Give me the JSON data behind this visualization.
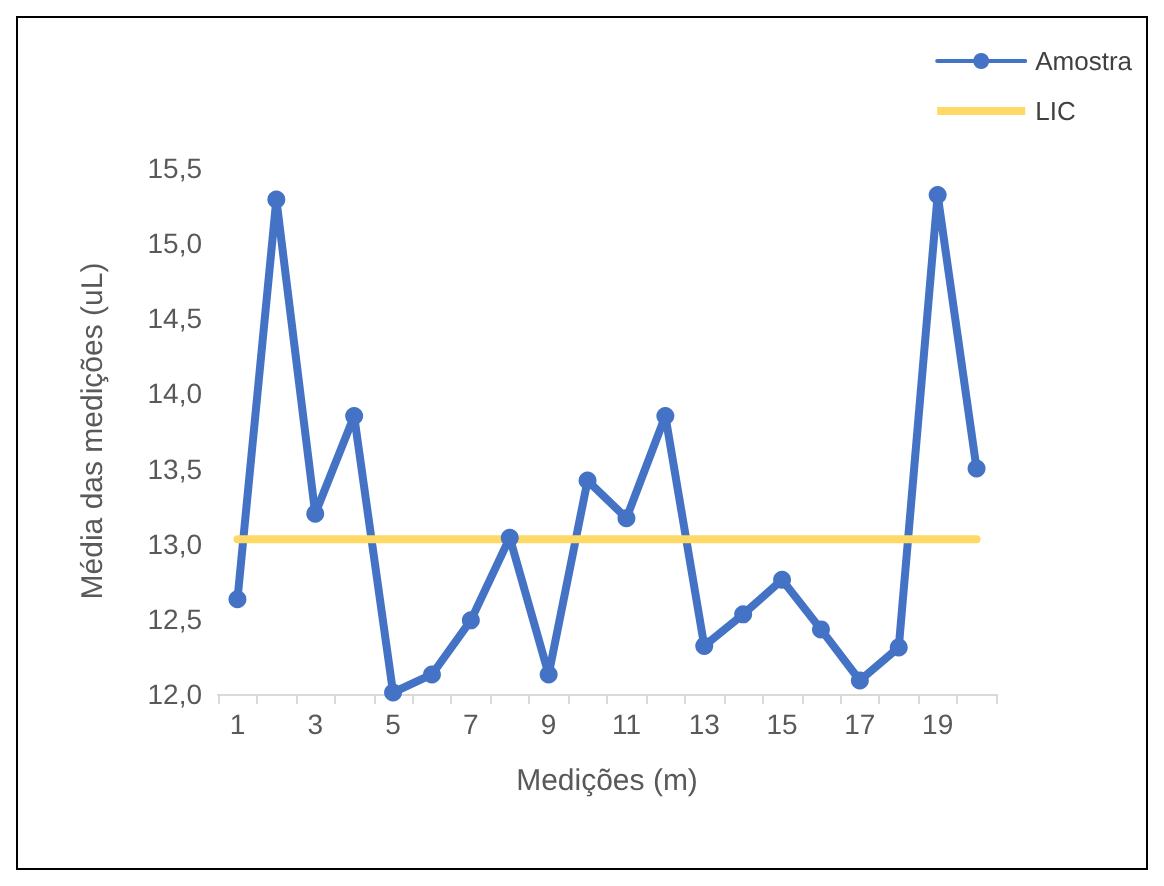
{
  "chart_data": {
    "type": "line",
    "xlabel": "Medições (m)",
    "ylabel": "Média das medições (uL)",
    "x": [
      1,
      2,
      3,
      4,
      5,
      6,
      7,
      8,
      9,
      10,
      11,
      12,
      13,
      14,
      15,
      16,
      17,
      18,
      19,
      20
    ],
    "xlim": [
      0.5,
      20.5
    ],
    "xticks": [
      {
        "value": 0.5,
        "label": null
      },
      1,
      {
        "value": 1.5,
        "label": null
      },
      {
        "value": 2.5,
        "label": null
      },
      3,
      {
        "value": 3.5,
        "label": null
      },
      {
        "value": 4.5,
        "label": null
      },
      5,
      {
        "value": 5.5,
        "label": null
      },
      {
        "value": 6.5,
        "label": null
      },
      7,
      {
        "value": 7.5,
        "label": null
      },
      {
        "value": 8.5,
        "label": null
      },
      9,
      {
        "value": 9.5,
        "label": null
      },
      {
        "value": 10.5,
        "label": null
      },
      11,
      {
        "value": 11.5,
        "label": null
      },
      {
        "value": 12.5,
        "label": null
      },
      13,
      {
        "value": 13.5,
        "label": null
      },
      {
        "value": 14.5,
        "label": null
      },
      15,
      {
        "value": 15.5,
        "label": null
      },
      {
        "value": 16.5,
        "label": null
      },
      17,
      {
        "value": 17.5,
        "label": null
      },
      {
        "value": 18.5,
        "label": null
      },
      19,
      {
        "value": 19.5,
        "label": null
      },
      {
        "value": 20.5,
        "label": null
      }
    ],
    "series": [
      {
        "name": "Amostra",
        "color": "#4472c4",
        "marker": "circle",
        "values": [
          12.63,
          15.29,
          13.2,
          13.85,
          12.01,
          12.13,
          12.49,
          13.04,
          12.13,
          13.42,
          13.17,
          13.85,
          12.32,
          12.53,
          12.76,
          12.43,
          12.09,
          12.31,
          15.32,
          13.5
        ]
      },
      {
        "name": "LIC",
        "color": "#ffd966",
        "marker": "none",
        "values": [
          13.03,
          13.03,
          13.03,
          13.03,
          13.03,
          13.03,
          13.03,
          13.03,
          13.03,
          13.03,
          13.03,
          13.03,
          13.03,
          13.03,
          13.03,
          13.03,
          13.03,
          13.03,
          13.03,
          13.03
        ]
      }
    ],
    "ylim": [
      12,
      15.5
    ],
    "yticks": [
      {
        "value": 12,
        "label": "12,0"
      },
      {
        "value": 12.5,
        "label": "12,5"
      },
      {
        "value": 13,
        "label": "13,0"
      },
      {
        "value": 13.5,
        "label": "13,5"
      },
      {
        "value": 14,
        "label": "14,0"
      },
      {
        "value": 14.5,
        "label": "14,5"
      },
      {
        "value": 15,
        "label": "15,0"
      },
      {
        "value": 15.5,
        "label": "15,5"
      }
    ],
    "grid": false,
    "legend": "top right"
  }
}
